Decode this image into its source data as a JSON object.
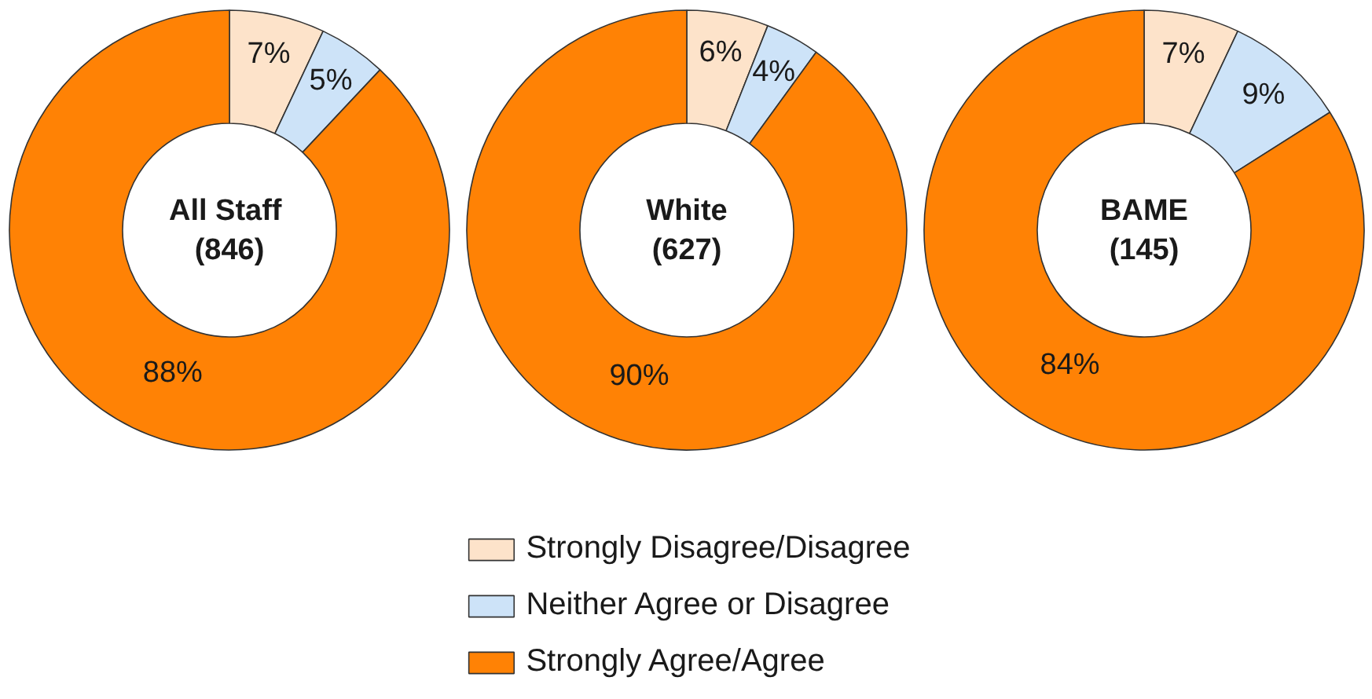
{
  "chart_data": [
    {
      "type": "donut",
      "title": "All  Staff",
      "subtitle": "(846)",
      "categories": [
        "Strongly Disagree/Disagree",
        "Neither Agree or Disagree",
        "Strongly Agree/Agree"
      ],
      "values": [
        7,
        5,
        88
      ],
      "value_labels": [
        "7%",
        "5%",
        "88%"
      ],
      "colors": [
        "#fde3ca",
        "#cde3f8",
        "#ff8205"
      ],
      "legend": "bottom"
    },
    {
      "type": "donut",
      "title": "White",
      "subtitle": "(627)",
      "values": [
        6,
        4,
        90
      ],
      "value_labels": [
        "6%",
        "4%",
        "90%"
      ],
      "colors": [
        "#fde3ca",
        "#cde3f8",
        "#ff8205"
      ]
    },
    {
      "type": "donut",
      "title": "BAME",
      "subtitle": "(145)",
      "values": [
        7,
        9,
        84
      ],
      "value_labels": [
        "7%",
        "9%",
        "84%"
      ],
      "colors": [
        "#fde3ca",
        "#cde3f8",
        "#ff8205"
      ]
    }
  ]
}
